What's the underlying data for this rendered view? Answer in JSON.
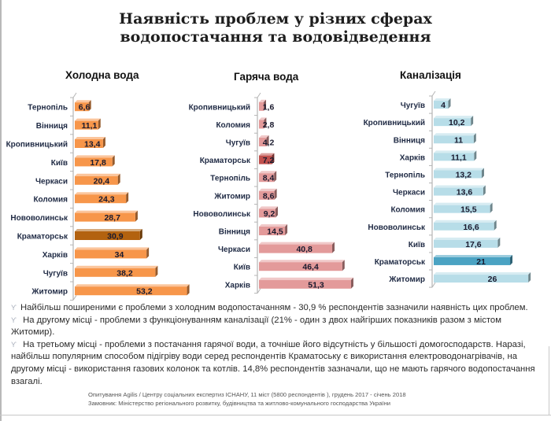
{
  "title_line1": "Наявність проблем у різних сферах",
  "title_line2": "водопостачання та водовідведення",
  "chart_data": [
    {
      "type": "bar",
      "orientation": "horizontal",
      "title": "Холодна  вода",
      "unit": "%",
      "categories": [
        "Тернопіль",
        "Вінниця",
        "Кропивницький",
        "Київ",
        "Черкаси",
        "Коломия",
        "Нововолинськ",
        "Краматорськ",
        "Харків",
        "Чугуїв",
        "Житомир"
      ],
      "values": [
        6.6,
        11.1,
        13.4,
        17.8,
        20.4,
        24.3,
        28.7,
        30.9,
        34,
        38.2,
        53.2
      ],
      "labels": [
        "6,6",
        "11,1",
        "13,4",
        "17,8",
        "20,4",
        "24,3",
        "28,7",
        "30,9",
        "34",
        "38,2",
        "53,2"
      ],
      "highlight": "Краматорськ",
      "color": "#f7964a",
      "highlight_color": "#b3620f"
    },
    {
      "type": "bar",
      "orientation": "horizontal",
      "title": "Гаряча  вода",
      "unit": "%",
      "categories": [
        "Кропивницький",
        "Коломия",
        "Чугуїв",
        "Краматорськ",
        "Тернопіль",
        "Житомир",
        "Нововолинськ",
        "Вінниця",
        "Черкаси",
        "Київ",
        "Харків"
      ],
      "values": [
        1.6,
        2.8,
        4.2,
        7.2,
        8.4,
        8.6,
        9.2,
        14.5,
        40.8,
        46.4,
        51.3
      ],
      "labels": [
        "1,6",
        "2,8",
        "4,2",
        "7,2",
        "8,4",
        "8,6",
        "9,2",
        "14,5",
        "40,8",
        "46,4",
        "51,3"
      ],
      "highlight": "Краматорськ",
      "color": "#e39a9a",
      "highlight_color": "#c0504d"
    },
    {
      "type": "bar",
      "orientation": "horizontal",
      "title": "Каналізація",
      "unit": "%",
      "categories": [
        "Чугуїв",
        "Кропивницький",
        "Вінниця",
        "Харків",
        "Тернопіль",
        "Черкаси",
        "Коломия",
        "Нововолинськ",
        "Київ",
        "Краматорськ",
        "Житомир"
      ],
      "values": [
        4,
        10.2,
        11,
        11.1,
        13.2,
        13.6,
        15.5,
        16.6,
        17.6,
        21,
        26
      ],
      "labels": [
        "4",
        "10,2",
        "11",
        "11,1",
        "13,2",
        "13,6",
        "15,5",
        "16,6",
        "17,6",
        "21",
        "26"
      ],
      "highlight": "Краматорськ",
      "color": "#b7dde8",
      "highlight_color": "#4ba3c3"
    }
  ],
  "notes": [
    "Найбільш поширеними є проблеми з холодним водопостачанням - 30,9 % респондентів зазначили наявність цих проблем.",
    " На другому місці - проблеми з функціонуванням каналізації (21% - один з двох найгірших показників разом з містом Житомир).",
    "  На третьому місці - проблеми з постачання гарячої води, а точніше його відсутність у більшості домогосподарств. Наразі, найбільш популярним способом підігріву води серед респондентів Краматоську є використання електроводонагрівачів, на другому місці - використання газових колонок та котлів. 14,8% респондентів зазначали, що не мають гарячого водопостачання взагалі."
  ],
  "bullet_glyph": "ϒ",
  "source_line1": "Опитування Agilis / Центру соціальних експертиз ІСНАНУ, 11 міст (5800 респондентів ), грудень 2017 - січень 2018",
  "source_line2": "Замовник: Міністерство регіонального розвитку, будівництва та житлово-комунального господарства України"
}
